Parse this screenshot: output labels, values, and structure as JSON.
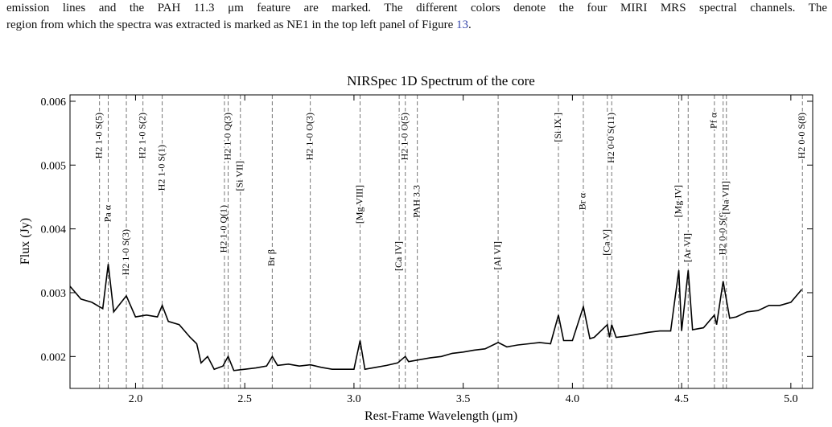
{
  "caption": {
    "line1": "emission lines and the PAH 11.3 μm feature are marked. The different colors denote the four MIRI MRS spectral channels. The",
    "line2": "region from which the spectra was extracted is marked as NE1 in the top left panel of Figure",
    "link": "13",
    "end": "."
  },
  "chart_data": {
    "type": "line",
    "title": "NIRSpec 1D Spectrum of the core",
    "xlabel": "Rest-Frame Wavelength (μm)",
    "ylabel": "Flux (Jy)",
    "color": "#000000",
    "xlim": [
      1.7,
      5.1
    ],
    "ylim": [
      0.0015,
      0.0061
    ],
    "xticks": [
      {
        "value": 2,
        "label": "2.0"
      },
      2.5,
      {
        "value": 3,
        "label": "3.0"
      },
      3.5,
      {
        "value": 4,
        "label": "4.0"
      },
      4.5,
      {
        "value": 5,
        "label": "5.0"
      }
    ],
    "yticks": [
      0.002,
      0.003,
      0.004,
      0.005,
      0.006
    ],
    "x": [
      1.7,
      1.75,
      1.8,
      1.85,
      1.875,
      1.9,
      1.958,
      2.0,
      2.05,
      2.1,
      2.122,
      2.15,
      2.2,
      2.25,
      2.28,
      2.3,
      2.33,
      2.36,
      2.4,
      2.424,
      2.45,
      2.5,
      2.55,
      2.6,
      2.626,
      2.65,
      2.7,
      2.75,
      2.8,
      2.85,
      2.9,
      2.95,
      3.0,
      3.028,
      3.05,
      3.1,
      3.15,
      3.2,
      3.235,
      3.25,
      3.3,
      3.35,
      3.4,
      3.45,
      3.5,
      3.55,
      3.6,
      3.66,
      3.7,
      3.75,
      3.8,
      3.85,
      3.9,
      3.936,
      3.96,
      4.0,
      4.05,
      4.08,
      4.1,
      4.16,
      4.17,
      4.18,
      4.2,
      4.25,
      4.3,
      4.35,
      4.4,
      4.45,
      4.487,
      4.5,
      4.53,
      4.55,
      4.6,
      4.65,
      4.66,
      4.69,
      4.72,
      4.75,
      4.8,
      4.85,
      4.9,
      4.95,
      5.0,
      5.05
    ],
    "values": [
      0.0031,
      0.0029,
      0.00285,
      0.00275,
      0.00345,
      0.0027,
      0.00295,
      0.00262,
      0.00265,
      0.00262,
      0.0028,
      0.00255,
      0.0025,
      0.0023,
      0.0022,
      0.0019,
      0.002,
      0.0018,
      0.00185,
      0.002,
      0.00178,
      0.0018,
      0.00182,
      0.00185,
      0.002,
      0.00186,
      0.00188,
      0.00185,
      0.00187,
      0.00183,
      0.0018,
      0.0018,
      0.0018,
      0.00225,
      0.0018,
      0.00183,
      0.00186,
      0.0019,
      0.002,
      0.00192,
      0.00195,
      0.00198,
      0.002,
      0.00205,
      0.00207,
      0.0021,
      0.00212,
      0.00222,
      0.00215,
      0.00218,
      0.0022,
      0.00222,
      0.0022,
      0.00265,
      0.00225,
      0.00225,
      0.00278,
      0.00228,
      0.0023,
      0.0025,
      0.0023,
      0.0025,
      0.0023,
      0.00232,
      0.00235,
      0.00238,
      0.0024,
      0.0024,
      0.00335,
      0.0024,
      0.00335,
      0.00242,
      0.00245,
      0.00265,
      0.0025,
      0.00318,
      0.0026,
      0.00262,
      0.0027,
      0.00272,
      0.0028,
      0.0028,
      0.00285,
      0.00305
    ],
    "annotations": [
      {
        "x": 1.835,
        "label": "H2 1-0 S(5)"
      },
      {
        "x": 1.875,
        "label": "Pa α"
      },
      {
        "x": 1.958,
        "label": "H2 1-0 S(3)"
      },
      {
        "x": 2.034,
        "label": "H2 1-0 S(2)"
      },
      {
        "x": 2.122,
        "label": "H2 1-0 S(1)"
      },
      {
        "x": 2.407,
        "label": "H2 1-0 Q(1)"
      },
      {
        "x": 2.424,
        "label": "H2 1-0 Q(3)"
      },
      {
        "x": 2.48,
        "label": "[Si VII]"
      },
      {
        "x": 2.626,
        "label": "Br β"
      },
      {
        "x": 2.8,
        "label": "H2 1-0 O(3)"
      },
      {
        "x": 3.028,
        "label": "[Mg VIII]"
      },
      {
        "x": 3.207,
        "label": "[Ca IV]"
      },
      {
        "x": 3.235,
        "label": "H2 1-0 O(5)"
      },
      {
        "x": 3.29,
        "label": "PAH 3.3"
      },
      {
        "x": 3.66,
        "label": "[Al VI]"
      },
      {
        "x": 3.936,
        "label": "[Si IX ]"
      },
      {
        "x": 4.05,
        "label": "Br α"
      },
      {
        "x": 4.16,
        "label": "[Ca V]"
      },
      {
        "x": 4.18,
        "label": "H2 0-0 S(11)"
      },
      {
        "x": 4.487,
        "label": "[Mg IV]"
      },
      {
        "x": 4.53,
        "label": "[Ar VI]"
      },
      {
        "x": 4.65,
        "label": "Pf α"
      },
      {
        "x": 4.69,
        "label": "H2 0-0 S(9)"
      },
      {
        "x": 4.705,
        "label": "[Na VII]"
      },
      {
        "x": 5.053,
        "label": "H2 0-0 S(8)"
      }
    ]
  }
}
